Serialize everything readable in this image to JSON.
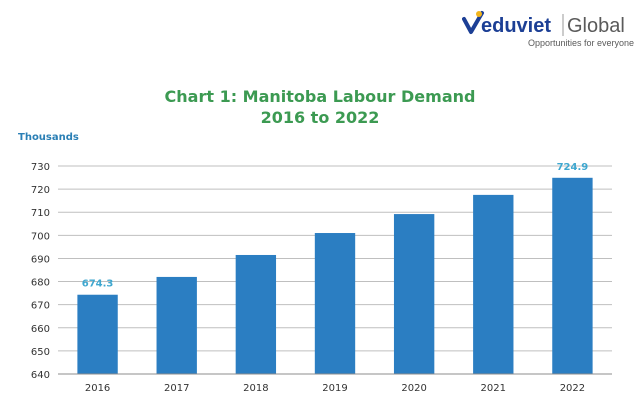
{
  "logo": {
    "brand_blue": "eduviet",
    "brand_gray": "Global",
    "tagline": "Opportunities for everyone",
    "colors": {
      "blue": "#1c3f95",
      "gray": "#5a5a5a",
      "accent": "#f2b51c"
    }
  },
  "chart_data": {
    "type": "bar",
    "title": "Chart 1: Manitoba Labour Demand",
    "subtitle": "2016 to 2022",
    "ylabel": "Thousands",
    "xlabel": "",
    "categories": [
      "2016",
      "2017",
      "2018",
      "2019",
      "2020",
      "2021",
      "2022"
    ],
    "values": [
      674.3,
      682,
      691.5,
      701,
      709.2,
      717.5,
      724.9
    ],
    "data_labels": [
      {
        "category": "2016",
        "text": "674.3"
      },
      {
        "category": "2022",
        "text": "724.9"
      }
    ],
    "ylim": [
      640,
      730
    ],
    "yticks": [
      640,
      650,
      660,
      670,
      680,
      690,
      700,
      710,
      720,
      730
    ],
    "grid": true,
    "legend": "none",
    "colors": {
      "bar": "#2b7ec2",
      "title": "#3c9a52",
      "ylabel": "#2a7fb5",
      "data_label": "#3ea7cf",
      "grid": "#bfbfbf"
    }
  }
}
